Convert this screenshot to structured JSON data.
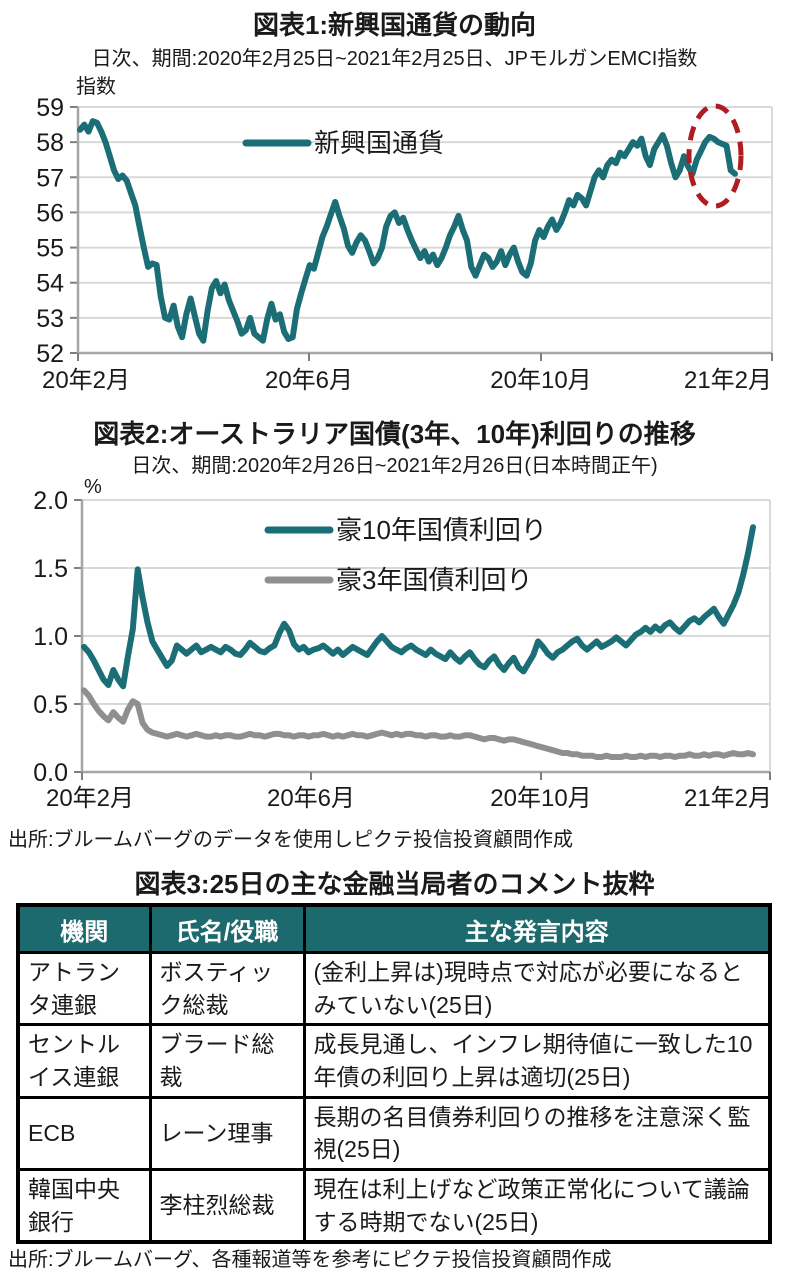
{
  "figure1": {
    "title": "図表1:新興国通貨の動向",
    "subtitle": "日次、期間:2020年2月25日~2021年2月25日、JPモルガンEMCI指数",
    "unit": "指数"
  },
  "figure2": {
    "title": "図表2:オーストラリア国債(3年、10年)利回りの推移",
    "subtitle": "日次、期間:2020年2月26日~2021年2月26日(日本時間正午)",
    "unit": "%",
    "source": "出所:ブルームバーグのデータを使用しピクテ投信投資顧問作成"
  },
  "figure3": {
    "title": "図表3:25日の主な金融当局者のコメント抜粋",
    "columns": [
      "機関",
      "氏名/役職",
      "主な発言内容"
    ],
    "rows": [
      {
        "org": "アトランタ連銀",
        "person": "ボスティック総裁",
        "comment": "(金利上昇は)現時点で対応が必要になるとみていない(25日)"
      },
      {
        "org": "セントルイス連銀",
        "person": "ブラード総裁",
        "comment": "成長見通し、インフレ期待値に一致した10年債の利回り上昇は適切(25日)"
      },
      {
        "org": "ECB",
        "person": "レーン理事",
        "comment": "長期の名目債券利回りの推移を注意深く監視(25日)"
      },
      {
        "org": "韓国中央銀行",
        "person": "李柱烈総裁",
        "comment": "現在は利上げなど政策正常化について議論する時期でない(25日)"
      }
    ],
    "source": "出所:ブルームバーグ、各種報道等を参考にピクテ投信投資顧問作成"
  },
  "colors": {
    "line_teal": "#1b6e75",
    "line_gray": "#8f8f8f",
    "annotation_red": "#b01c21",
    "grid": "#d9d9d9",
    "axis": "#a6a6a6",
    "tick": "#7f7f7f",
    "table_header_bg": "#1d6a6e",
    "table_header_text": "#ffffff"
  },
  "chart_data": [
    {
      "type": "line",
      "title": "図表1:新興国通貨の動向",
      "subtitle": "日次、期間:2020年2月25日~2021年2月25日、JPモルガンEMCI指数",
      "ylabel": "指数",
      "xlabel": "",
      "ylim": [
        52,
        59
      ],
      "grid": true,
      "legend_position": "top-center-inside",
      "y_tick_labels": [
        "59",
        "58",
        "57",
        "56",
        "55",
        "54",
        "53",
        "52"
      ],
      "x_tick_labels": [
        "20年2月",
        "20年6月",
        "20年10月",
        "21年2月"
      ],
      "annotation": {
        "shape": "dashed-ellipse",
        "color": "#b01c21",
        "meaning": "直近の下落を強調"
      },
      "series": [
        {
          "name": "新興国通貨",
          "color": "#1b6e75",
          "values": [
            58.35,
            58.5,
            58.3,
            58.6,
            58.55,
            58.3,
            58.0,
            57.6,
            57.2,
            56.95,
            57.05,
            56.9,
            56.55,
            56.2,
            55.6,
            55.0,
            54.45,
            54.55,
            54.5,
            53.6,
            53.0,
            52.95,
            53.35,
            52.75,
            52.45,
            53.1,
            53.55,
            53.05,
            52.55,
            52.35,
            53.2,
            53.85,
            54.05,
            53.7,
            53.95,
            53.5,
            53.2,
            52.9,
            52.55,
            52.65,
            53.0,
            52.55,
            52.45,
            52.35,
            52.95,
            53.4,
            52.95,
            53.1,
            52.6,
            52.4,
            52.45,
            53.25,
            53.7,
            54.1,
            54.5,
            54.4,
            54.85,
            55.3,
            55.6,
            55.95,
            56.3,
            55.9,
            55.55,
            55.05,
            54.85,
            55.15,
            55.35,
            55.2,
            54.9,
            54.55,
            54.7,
            55.0,
            55.6,
            55.9,
            56.0,
            55.7,
            55.85,
            55.5,
            55.2,
            54.95,
            54.7,
            54.9,
            54.6,
            54.8,
            54.5,
            54.7,
            55.0,
            55.35,
            55.6,
            55.9,
            55.5,
            55.2,
            54.45,
            54.2,
            54.5,
            54.8,
            54.7,
            54.45,
            54.6,
            54.9,
            54.5,
            54.8,
            55.0,
            54.6,
            54.3,
            54.2,
            54.55,
            55.2,
            55.5,
            55.3,
            55.6,
            55.8,
            55.5,
            55.7,
            56.0,
            56.35,
            56.2,
            56.5,
            56.4,
            56.2,
            56.6,
            57.0,
            57.2,
            57.0,
            57.35,
            57.5,
            57.4,
            57.7,
            57.6,
            57.8,
            58.0,
            57.9,
            58.1,
            57.6,
            57.35,
            57.8,
            58.0,
            58.2,
            57.9,
            57.4,
            57.0,
            57.2,
            57.6,
            57.3,
            57.1,
            57.5,
            57.75,
            58.0,
            58.15,
            58.1,
            58.0,
            57.95,
            57.9,
            57.2,
            57.1
          ]
        }
      ]
    },
    {
      "type": "line",
      "title": "図表2:オーストラリア国債(3年、10年)利回りの推移",
      "subtitle": "日次、期間:2020年2月26日~2021年2月26日(日本時間正午)",
      "ylabel": "%",
      "xlabel": "",
      "ylim": [
        0.0,
        2.0
      ],
      "grid": true,
      "legend_position": "top-center-inside",
      "y_tick_labels": [
        "2.0",
        "1.5",
        "1.0",
        "0.5",
        "0.0"
      ],
      "x_tick_labels": [
        "20年2月",
        "20年6月",
        "20年10月",
        "21年2月"
      ],
      "series": [
        {
          "name": "豪10年国債利回り",
          "color": "#1b6e75",
          "values": [
            0.92,
            0.88,
            0.82,
            0.75,
            0.68,
            0.64,
            0.75,
            0.68,
            0.63,
            0.85,
            1.05,
            1.49,
            1.28,
            1.1,
            0.96,
            0.9,
            0.84,
            0.78,
            0.82,
            0.93,
            0.9,
            0.87,
            0.9,
            0.93,
            0.88,
            0.9,
            0.92,
            0.9,
            0.88,
            0.92,
            0.9,
            0.87,
            0.86,
            0.9,
            0.95,
            0.92,
            0.89,
            0.88,
            0.91,
            0.93,
            1.02,
            1.09,
            1.04,
            0.94,
            0.9,
            0.92,
            0.88,
            0.9,
            0.91,
            0.93,
            0.9,
            0.87,
            0.9,
            0.86,
            0.89,
            0.92,
            0.9,
            0.88,
            0.86,
            0.91,
            0.96,
            1.0,
            0.96,
            0.92,
            0.9,
            0.88,
            0.91,
            0.93,
            0.9,
            0.88,
            0.86,
            0.9,
            0.87,
            0.85,
            0.83,
            0.88,
            0.84,
            0.81,
            0.85,
            0.88,
            0.83,
            0.79,
            0.77,
            0.82,
            0.85,
            0.79,
            0.75,
            0.8,
            0.84,
            0.77,
            0.74,
            0.8,
            0.86,
            0.96,
            0.92,
            0.87,
            0.84,
            0.88,
            0.9,
            0.93,
            0.96,
            0.98,
            0.93,
            0.9,
            0.93,
            0.96,
            0.92,
            0.94,
            0.96,
            0.99,
            0.96,
            0.93,
            0.97,
            1.01,
            1.03,
            1.06,
            1.03,
            1.07,
            1.04,
            1.08,
            1.1,
            1.06,
            1.03,
            1.07,
            1.11,
            1.13,
            1.1,
            1.14,
            1.17,
            1.2,
            1.14,
            1.09,
            1.16,
            1.23,
            1.32,
            1.45,
            1.61,
            1.8
          ]
        },
        {
          "name": "豪3年国債利回り",
          "color": "#8f8f8f",
          "values": [
            0.6,
            0.56,
            0.5,
            0.45,
            0.41,
            0.38,
            0.44,
            0.4,
            0.37,
            0.46,
            0.52,
            0.5,
            0.36,
            0.31,
            0.29,
            0.28,
            0.27,
            0.26,
            0.27,
            0.28,
            0.27,
            0.26,
            0.27,
            0.28,
            0.27,
            0.26,
            0.26,
            0.27,
            0.26,
            0.27,
            0.27,
            0.26,
            0.26,
            0.27,
            0.28,
            0.27,
            0.27,
            0.26,
            0.27,
            0.28,
            0.28,
            0.27,
            0.27,
            0.26,
            0.27,
            0.27,
            0.26,
            0.27,
            0.27,
            0.28,
            0.27,
            0.26,
            0.27,
            0.26,
            0.27,
            0.28,
            0.27,
            0.27,
            0.26,
            0.27,
            0.28,
            0.29,
            0.28,
            0.27,
            0.28,
            0.27,
            0.28,
            0.28,
            0.27,
            0.27,
            0.26,
            0.27,
            0.27,
            0.26,
            0.26,
            0.27,
            0.26,
            0.26,
            0.27,
            0.27,
            0.26,
            0.25,
            0.24,
            0.25,
            0.25,
            0.24,
            0.23,
            0.24,
            0.24,
            0.23,
            0.22,
            0.21,
            0.2,
            0.19,
            0.18,
            0.17,
            0.16,
            0.15,
            0.14,
            0.14,
            0.13,
            0.13,
            0.12,
            0.12,
            0.12,
            0.11,
            0.11,
            0.12,
            0.11,
            0.11,
            0.11,
            0.12,
            0.11,
            0.11,
            0.12,
            0.11,
            0.12,
            0.12,
            0.11,
            0.12,
            0.12,
            0.11,
            0.12,
            0.12,
            0.13,
            0.12,
            0.12,
            0.13,
            0.12,
            0.13,
            0.13,
            0.12,
            0.13,
            0.14,
            0.13,
            0.13,
            0.14,
            0.13
          ]
        }
      ]
    }
  ]
}
